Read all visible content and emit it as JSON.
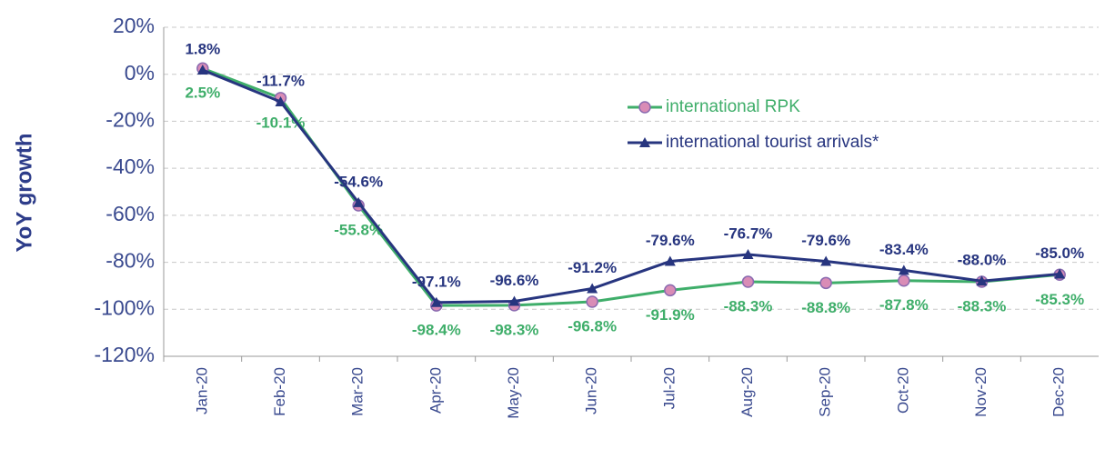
{
  "chart_data": {
    "type": "line",
    "ylabel": "YoY growth",
    "categories": [
      "Jan-20",
      "Feb-20",
      "Mar-20",
      "Apr-20",
      "May-20",
      "Jun-20",
      "Jul-20",
      "Aug-20",
      "Sep-20",
      "Oct-20",
      "Nov-20",
      "Dec-20"
    ],
    "series": [
      {
        "name": "international RPK",
        "color": "#3fae6a",
        "marker": "circle",
        "marker_color": "#d98cb6",
        "values": [
          2.5,
          -10.1,
          -55.8,
          -98.4,
          -98.3,
          -96.8,
          -91.9,
          -88.3,
          -88.8,
          -87.8,
          -88.3,
          -85.3
        ],
        "value_labels": [
          "2.5%",
          "-10.1%",
          "-55.8%",
          "-98.4%",
          "-98.3%",
          "-96.8%",
          "-91.9%",
          "-88.3%",
          "-88.8%",
          "-87.8%",
          "-88.3%",
          "-85.3%"
        ]
      },
      {
        "name": "international tourist arrivals*",
        "color": "#27357f",
        "marker": "triangle",
        "marker_color": "#27357f",
        "values": [
          1.8,
          -11.7,
          -54.6,
          -97.1,
          -96.6,
          -91.2,
          -79.6,
          -76.7,
          -79.6,
          -83.4,
          -88.0,
          -85.0
        ],
        "value_labels": [
          "1.8%",
          "-11.7%",
          "-54.6%",
          "-97.1%",
          "-96.6%",
          "-91.2%",
          "-79.6%",
          "-76.7%",
          "-79.6%",
          "-83.4%",
          "-88.0%",
          "-85.0%"
        ]
      }
    ],
    "ylim": [
      -120,
      20
    ],
    "yticks": [
      {
        "value": -120,
        "label": "-120%"
      },
      {
        "value": -100,
        "label": "-100%"
      },
      {
        "value": -80,
        "label": "-80%"
      },
      {
        "value": -60,
        "label": "-60%"
      },
      {
        "value": -40,
        "label": "-40%"
      },
      {
        "value": -20,
        "label": "-20%"
      },
      {
        "value": 0,
        "label": "0%"
      },
      {
        "value": 20,
        "label": "20%"
      }
    ],
    "grid": true
  }
}
